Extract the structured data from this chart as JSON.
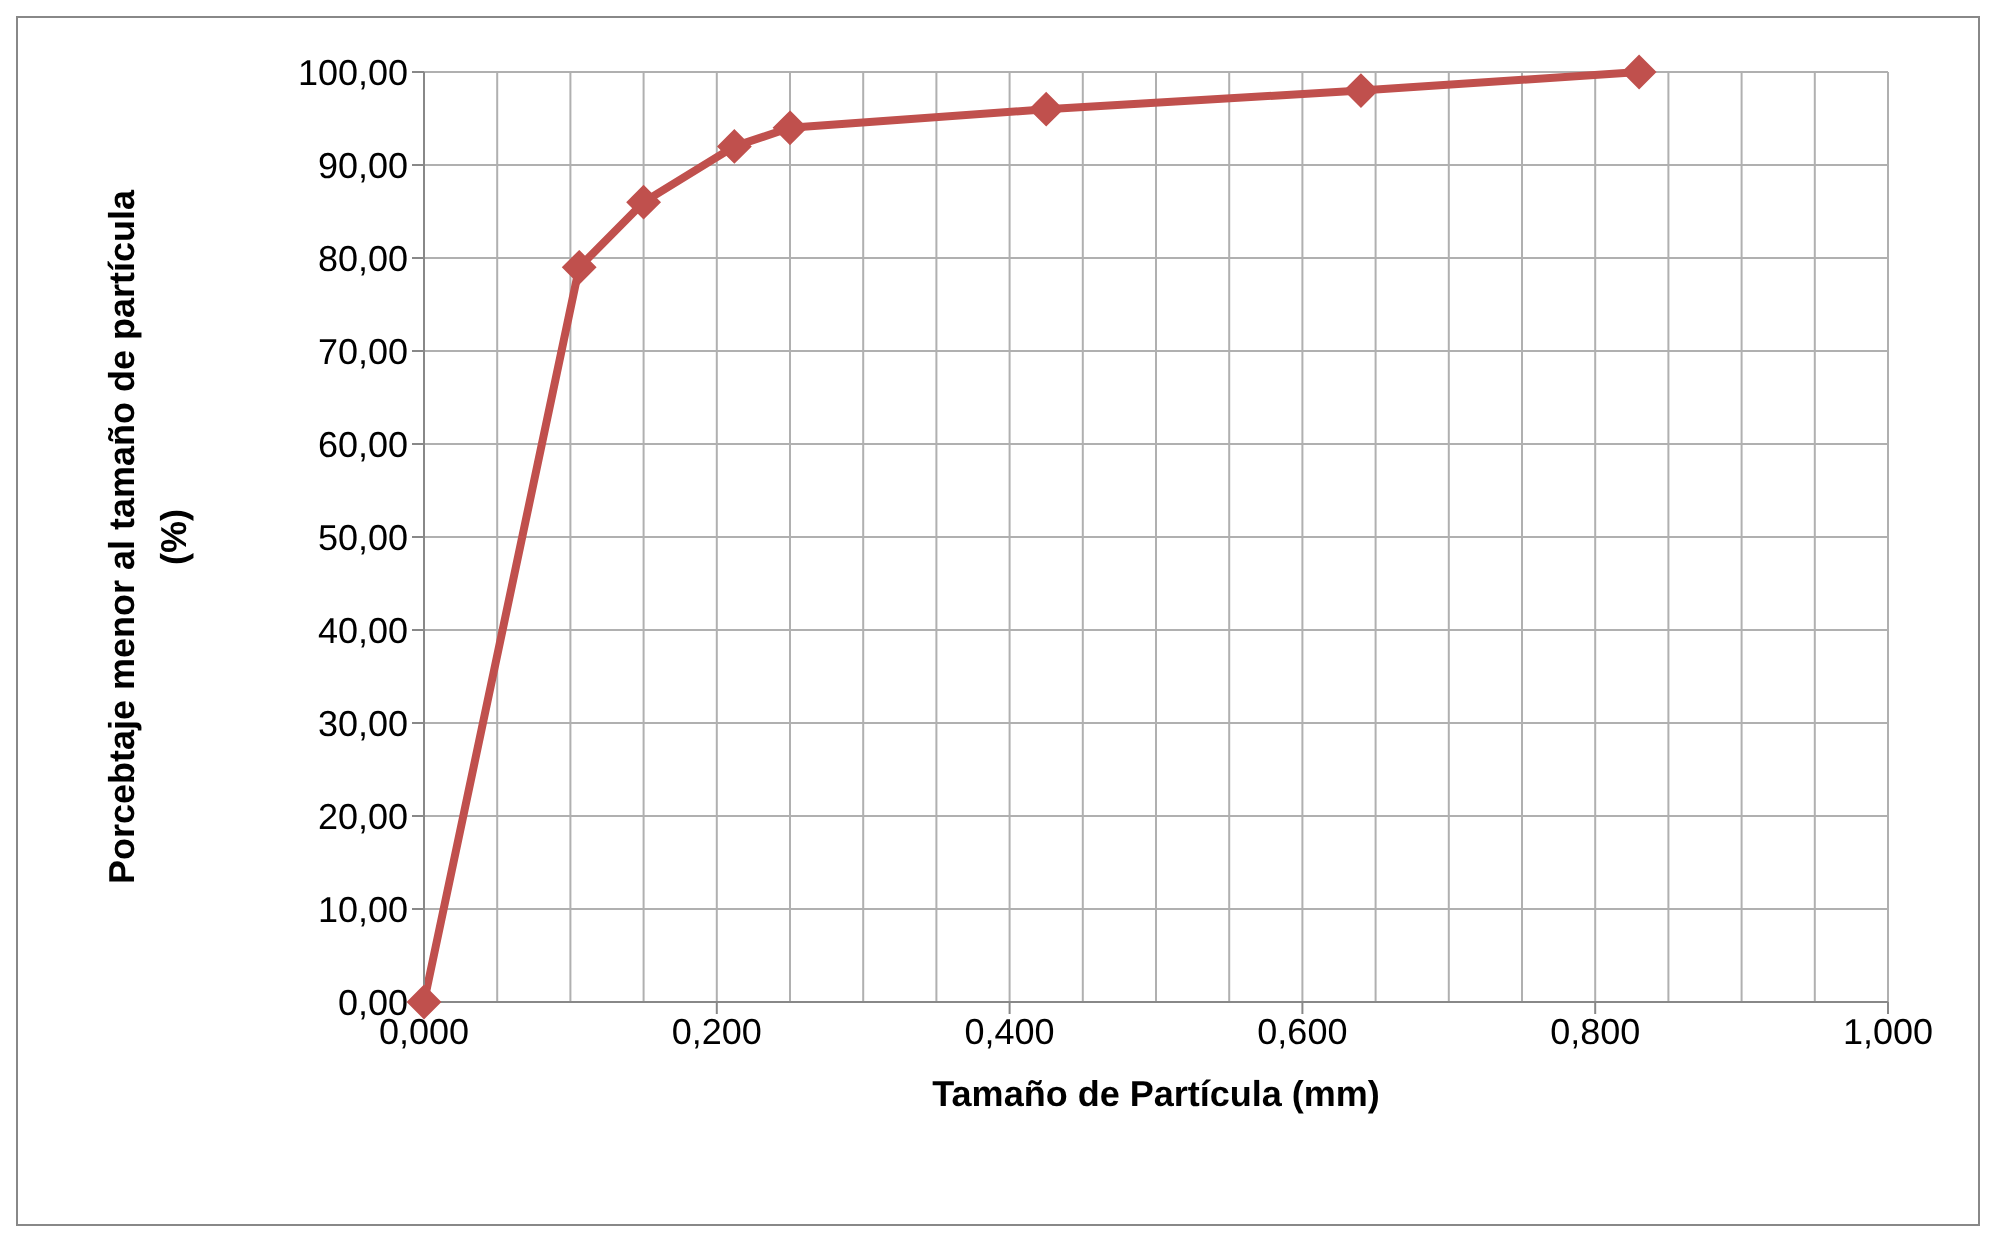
{
  "chart_data": {
    "type": "line",
    "xlabel": "Tamaño de Partícula (mm)",
    "ylabel": "Porcebtaje menor al tamaño de partícula (%)",
    "x": [
      0,
      0.106,
      0.15,
      0.212,
      0.25,
      0.425,
      0.64,
      0.83
    ],
    "series": [
      {
        "color": "#c0504d",
        "values": [
          0,
          79,
          86,
          92,
          94,
          96,
          98,
          100
        ]
      }
    ],
    "xlim": [
      0,
      1
    ],
    "ylim": [
      0,
      100
    ],
    "xticks": [
      {
        "value": 0,
        "label": "0,000"
      },
      {
        "value": 0.2,
        "label": "0,200"
      },
      {
        "value": 0.4,
        "label": "0,400"
      },
      {
        "value": 0.6,
        "label": "0,600"
      },
      {
        "value": 0.8,
        "label": "0,800"
      },
      {
        "value": 1,
        "label": "1,000"
      }
    ],
    "yticks": [
      {
        "value": 0,
        "label": "0,00"
      },
      {
        "value": 10,
        "label": "10,00"
      },
      {
        "value": 20,
        "label": "20,00"
      },
      {
        "value": 30,
        "label": "30,00"
      },
      {
        "value": 40,
        "label": "40,00"
      },
      {
        "value": 50,
        "label": "50,00"
      },
      {
        "value": 60,
        "label": "60,00"
      },
      {
        "value": 70,
        "label": "70,00"
      },
      {
        "value": 80,
        "label": "80,00"
      },
      {
        "value": 90,
        "label": "90,00"
      },
      {
        "value": 100,
        "label": "100,00"
      }
    ],
    "grid": true,
    "marker": "diamond",
    "line_style": "solid"
  }
}
